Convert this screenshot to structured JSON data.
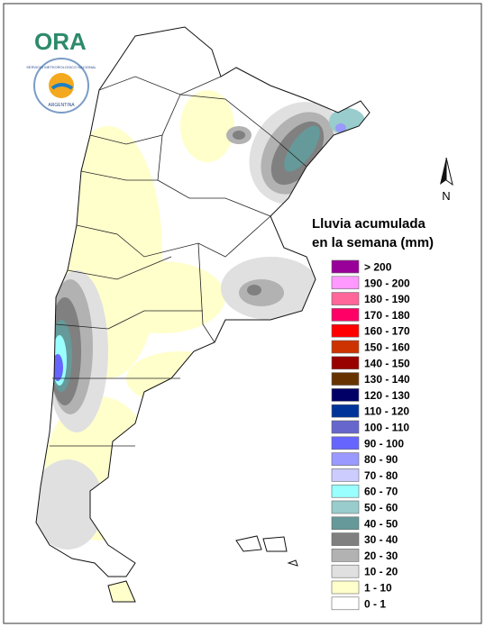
{
  "logo": {
    "name": "ORA",
    "seal_top": "SERVICIO METEOROLOGICO NACIONAL",
    "seal_bottom": "ARGENTINA"
  },
  "north": "N",
  "legend": {
    "title": [
      "Lluvia acumulada",
      "en la semana (mm)"
    ],
    "items": [
      {
        "label": "> 200",
        "color": "#990099"
      },
      {
        "label": "190 - 200",
        "color": "#ff99ff"
      },
      {
        "label": "180 - 190",
        "color": "#ff6699"
      },
      {
        "label": "170 - 180",
        "color": "#ff0066"
      },
      {
        "label": "160 - 170",
        "color": "#ff0000"
      },
      {
        "label": "150 - 160",
        "color": "#cc3300"
      },
      {
        "label": "140 - 150",
        "color": "#990000"
      },
      {
        "label": "130 - 140",
        "color": "#663300"
      },
      {
        "label": "120 - 130",
        "color": "#000066"
      },
      {
        "label": "110 - 120",
        "color": "#003399"
      },
      {
        "label": "100 - 110",
        "color": "#6666cc"
      },
      {
        "label": "90 - 100",
        "color": "#6666ff"
      },
      {
        "label": "80 - 90",
        "color": "#9999ff"
      },
      {
        "label": "70 - 80",
        "color": "#ccccff"
      },
      {
        "label": "60 - 70",
        "color": "#99ffff"
      },
      {
        "label": "50 - 60",
        "color": "#99cccc"
      },
      {
        "label": "40 - 50",
        "color": "#669999"
      },
      {
        "label": "30 - 40",
        "color": "#808080"
      },
      {
        "label": "20 - 30",
        "color": "#b2b2b2"
      },
      {
        "label": "10 - 20",
        "color": "#e0e0e0"
      },
      {
        "label": "1 - 10",
        "color": "#ffffcc"
      },
      {
        "label": "0 - 1",
        "color": "#ffffff"
      }
    ]
  }
}
